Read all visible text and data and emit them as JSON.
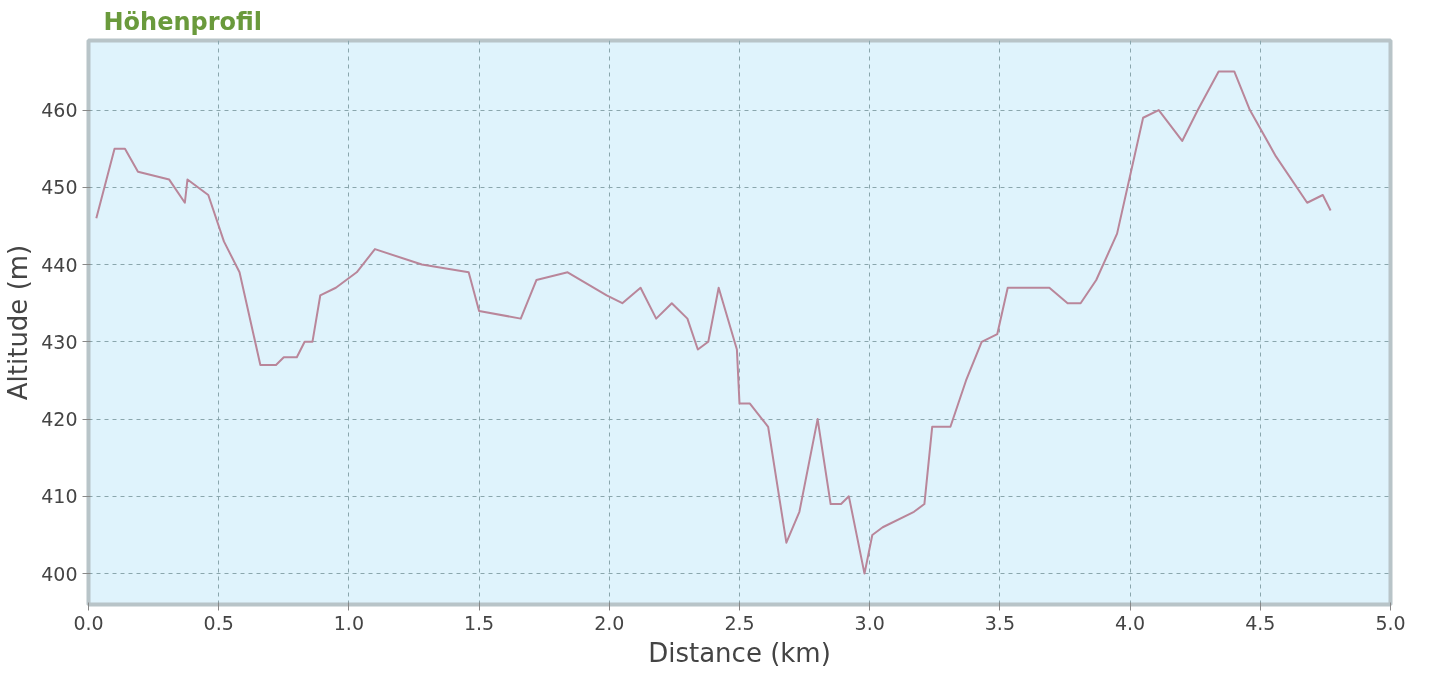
{
  "chart_data": {
    "type": "line",
    "title": "Höhenprofil",
    "xlabel": "Distance (km)",
    "ylabel": "Altitude (m)",
    "xlim": [
      0,
      5
    ],
    "ylim": [
      396,
      469
    ],
    "xticks": [
      {
        "value": 0,
        "label": "0.0"
      },
      0.5,
      {
        "value": 1,
        "label": "1.0"
      },
      1.5,
      {
        "value": 2,
        "label": "2.0"
      },
      2.5,
      {
        "value": 3,
        "label": "3.0"
      },
      3.5,
      {
        "value": 4,
        "label": "4.0"
      },
      4.5,
      {
        "value": 5,
        "label": "5.0"
      }
    ],
    "yticks": [
      400,
      410,
      420,
      430,
      440,
      450,
      460
    ],
    "grid": true,
    "line_style": "solid",
    "series": [
      {
        "color": "#b9869a",
        "x": [
          0.03,
          0.1,
          0.14,
          0.19,
          0.31,
          0.37,
          0.38,
          0.46,
          0.52,
          0.58,
          0.66,
          0.72,
          0.75,
          0.8,
          0.83,
          0.86,
          0.89,
          0.95,
          1.03,
          1.1,
          1.28,
          1.46,
          1.5,
          1.66,
          1.72,
          1.84,
          1.99,
          2.05,
          2.12,
          2.18,
          2.24,
          2.3,
          2.34,
          2.38,
          2.42,
          2.49,
          2.5,
          2.54,
          2.61,
          2.68,
          2.73,
          2.8,
          2.85,
          2.89,
          2.92,
          2.98,
          3.01,
          3.05,
          3.17,
          3.21,
          3.24,
          3.31,
          3.37,
          3.43,
          3.49,
          3.53,
          3.66,
          3.69,
          3.76,
          3.81,
          3.87,
          3.95,
          3.99,
          4.05,
          4.11,
          4.2,
          4.26,
          4.34,
          4.4,
          4.46,
          4.56,
          4.68,
          4.74,
          4.77
        ],
        "values": [
          446,
          455,
          455,
          452,
          451,
          448,
          451,
          449,
          443,
          439,
          427,
          427,
          428,
          428,
          430,
          430,
          436,
          437,
          439,
          442,
          440,
          439,
          434,
          433,
          438,
          439,
          436,
          435,
          437,
          433,
          435,
          433,
          429,
          430,
          437,
          429,
          422,
          422,
          419,
          404,
          408,
          420,
          409,
          409,
          410,
          400,
          405,
          406,
          408,
          409,
          419,
          419,
          425,
          430,
          431,
          437,
          437,
          437,
          435,
          435,
          438,
          444,
          450,
          459,
          460,
          456,
          460,
          465,
          465,
          460,
          454,
          448,
          449,
          447
        ]
      }
    ]
  }
}
